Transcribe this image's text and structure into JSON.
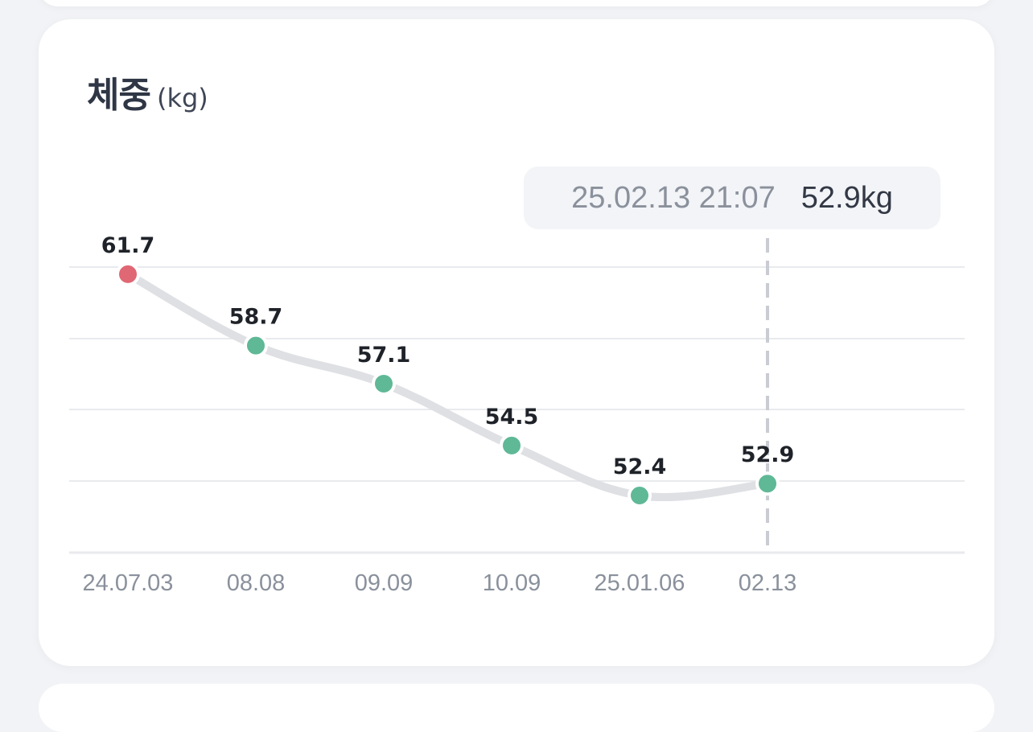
{
  "card": {
    "title": "체중",
    "unit": "(kg)"
  },
  "tooltip": {
    "timestamp": "25.02.13 21:07",
    "value": "52.9kg"
  },
  "colors": {
    "line": "#dfe0e4",
    "point_default": "#5fb896",
    "point_highlight": "#e06774",
    "grid": "#e9eaed",
    "label": "#1f2329",
    "axis_label": "#8a919c"
  },
  "chart_data": {
    "type": "line",
    "categories": [
      "24.07.03",
      "08.08",
      "09.09",
      "10.09",
      "25.01.06",
      "02.13"
    ],
    "values": [
      61.7,
      58.7,
      57.1,
      54.5,
      52.4,
      52.9
    ],
    "data_labels": [
      "61.7",
      "58.7",
      "57.1",
      "54.5",
      "52.4",
      "52.9"
    ],
    "highlight_index": 0,
    "selected_index": 5,
    "ylim": [
      50.0,
      62.0
    ],
    "grid": true,
    "xlabel": "",
    "ylabel": ""
  }
}
